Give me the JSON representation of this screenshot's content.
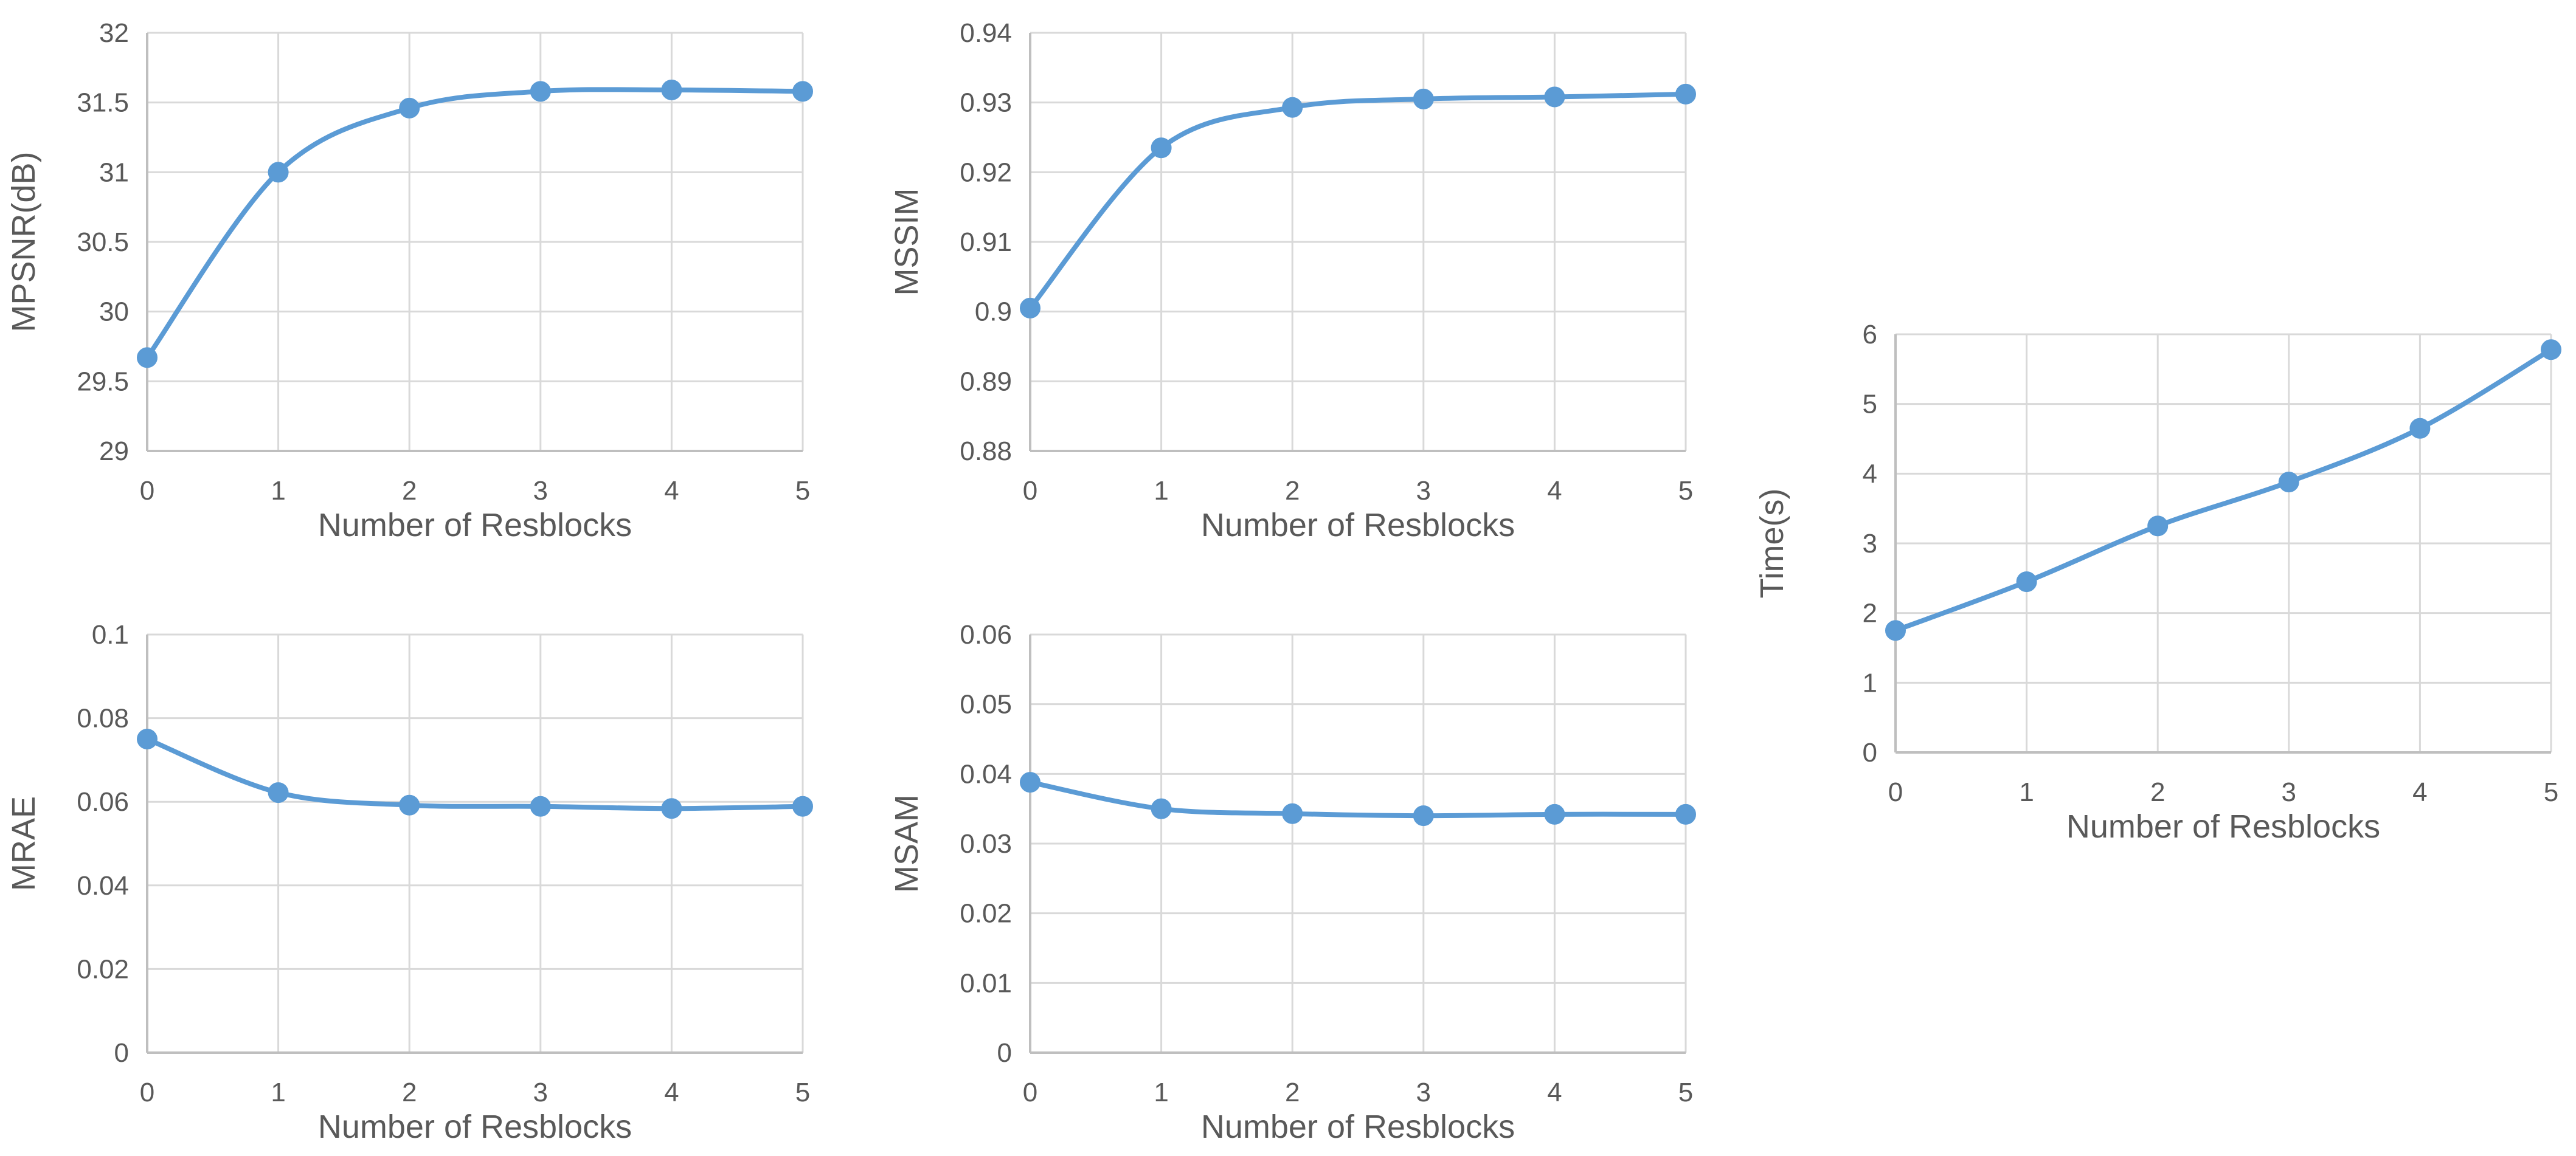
{
  "chart_data": [
    {
      "id": "mpsnr",
      "type": "line",
      "xlabel": "Number of Resblocks",
      "ylabel": "MPSNR(dB)",
      "x": [
        0,
        1,
        2,
        3,
        4,
        5
      ],
      "values": [
        29.67,
        31.0,
        31.46,
        31.58,
        31.59,
        31.58
      ],
      "ylim": [
        29,
        32
      ],
      "yticks": [
        29,
        29.5,
        30,
        30.5,
        31,
        31.5,
        32
      ],
      "ytick_labels": [
        "29",
        "29.5",
        "30",
        "30.5",
        "31",
        "31.5",
        "32"
      ],
      "xticks": [
        "0",
        "1",
        "2",
        "3",
        "4",
        "5"
      ],
      "grid": true,
      "color": "#5b9bd5"
    },
    {
      "id": "mssim",
      "type": "line",
      "xlabel": "Number of Resblocks",
      "ylabel": "MSSIM",
      "x": [
        0,
        1,
        2,
        3,
        4,
        5
      ],
      "values": [
        0.9005,
        0.9235,
        0.9293,
        0.9305,
        0.9308,
        0.9312
      ],
      "ylim": [
        0.88,
        0.94
      ],
      "yticks": [
        0.88,
        0.89,
        0.9,
        0.91,
        0.92,
        0.93,
        0.94
      ],
      "ytick_labels": [
        "0.88",
        "0.89",
        "0.9",
        "0.91",
        "0.92",
        "0.93",
        "0.94"
      ],
      "xticks": [
        "0",
        "1",
        "2",
        "3",
        "4",
        "5"
      ],
      "grid": true,
      "color": "#5b9bd5"
    },
    {
      "id": "time",
      "type": "line",
      "xlabel": "Number of Resblocks",
      "ylabel": "Time(s)",
      "x": [
        0,
        1,
        2,
        3,
        4,
        5
      ],
      "values": [
        1.75,
        2.45,
        3.25,
        3.88,
        4.65,
        5.78
      ],
      "ylim": [
        0,
        6
      ],
      "yticks": [
        0,
        1,
        2,
        3,
        4,
        5,
        6
      ],
      "ytick_labels": [
        "0",
        "1",
        "2",
        "3",
        "4",
        "5",
        "6"
      ],
      "xticks": [
        "0",
        "1",
        "2",
        "3",
        "4",
        "5"
      ],
      "grid": true,
      "color": "#5b9bd5"
    },
    {
      "id": "mrae",
      "type": "line",
      "xlabel": "Number of Resblocks",
      "ylabel": "MRAE",
      "x": [
        0,
        1,
        2,
        3,
        4,
        5
      ],
      "values": [
        0.075,
        0.0622,
        0.0592,
        0.0589,
        0.0584,
        0.0589
      ],
      "ylim": [
        0,
        0.1
      ],
      "yticks": [
        0,
        0.02,
        0.04,
        0.06,
        0.08,
        0.1
      ],
      "ytick_labels": [
        "0",
        "0.02",
        "0.04",
        "0.06",
        "0.08",
        "0.1"
      ],
      "xticks": [
        "0",
        "1",
        "2",
        "3",
        "4",
        "5"
      ],
      "grid": true,
      "color": "#5b9bd5"
    },
    {
      "id": "msam",
      "type": "line",
      "xlabel": "Number of Resblocks",
      "ylabel": "MSAM",
      "x": [
        0,
        1,
        2,
        3,
        4,
        5
      ],
      "values": [
        0.0388,
        0.035,
        0.0343,
        0.034,
        0.0342,
        0.0342
      ],
      "ylim": [
        0,
        0.06
      ],
      "yticks": [
        0,
        0.01,
        0.02,
        0.03,
        0.04,
        0.05,
        0.06
      ],
      "ytick_labels": [
        "0",
        "0.01",
        "0.02",
        "0.03",
        "0.04",
        "0.05",
        "0.06"
      ],
      "xticks": [
        "0",
        "1",
        "2",
        "3",
        "4",
        "5"
      ],
      "grid": true,
      "color": "#5b9bd5"
    }
  ]
}
